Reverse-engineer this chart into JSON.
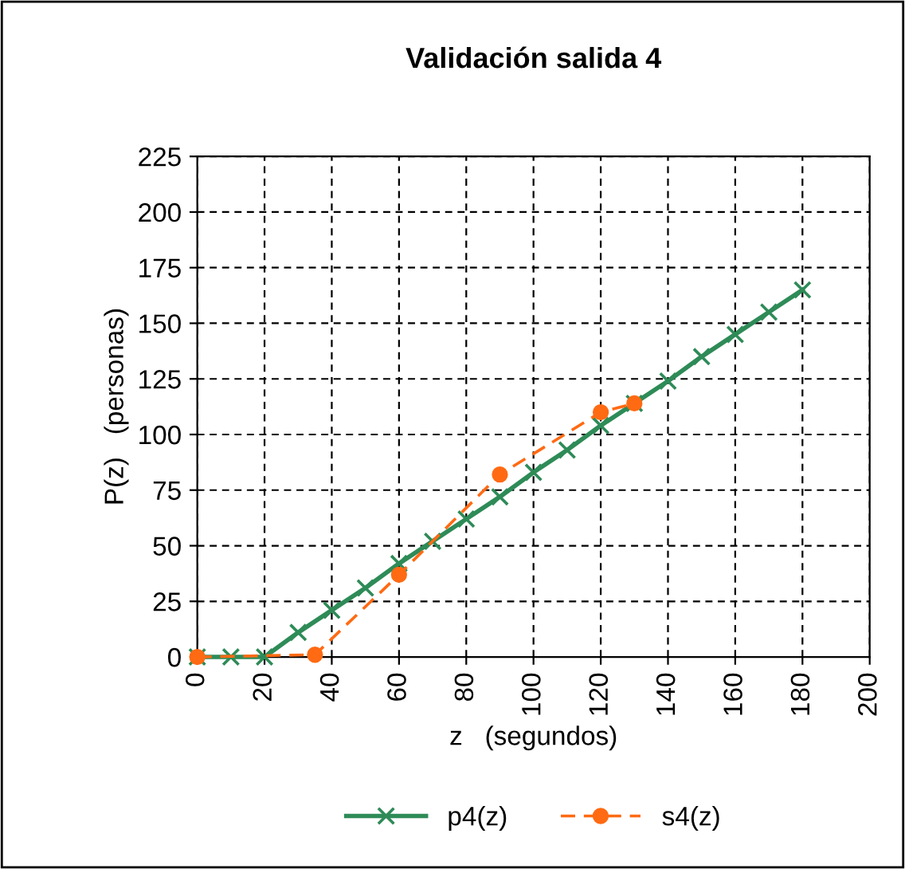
{
  "chart_data": {
    "type": "line",
    "title": "Validación salida 4",
    "xlabel": "z   (segundos)",
    "ylabel": "P(z)   (personas)",
    "xlim": [
      0,
      200
    ],
    "xticks": [
      0,
      20,
      40,
      60,
      80,
      100,
      120,
      140,
      160,
      180,
      200
    ],
    "ylim": [
      0,
      225
    ],
    "yticks": [
      0,
      25,
      50,
      75,
      100,
      125,
      150,
      175,
      200,
      225
    ],
    "grid": true,
    "legend": "bottom",
    "series": [
      {
        "name": "p4(z)",
        "color": "#2e8b57",
        "marker": "cross",
        "line_style": "solid",
        "x": [
          0,
          10,
          20,
          30,
          40,
          50,
          60,
          70,
          80,
          90,
          100,
          110,
          120,
          130,
          140,
          150,
          160,
          170,
          180
        ],
        "values": [
          0,
          0,
          0,
          11,
          21,
          31,
          42,
          52,
          62,
          72,
          83,
          93,
          104,
          114,
          124,
          135,
          145,
          155,
          165
        ]
      },
      {
        "name": "s4(z)",
        "color": "#ff6a13",
        "marker": "circle",
        "line_style": "dashed",
        "x": [
          0,
          35,
          60,
          90,
          120,
          130
        ],
        "values": [
          0,
          1,
          37,
          82,
          110,
          114
        ]
      }
    ]
  }
}
